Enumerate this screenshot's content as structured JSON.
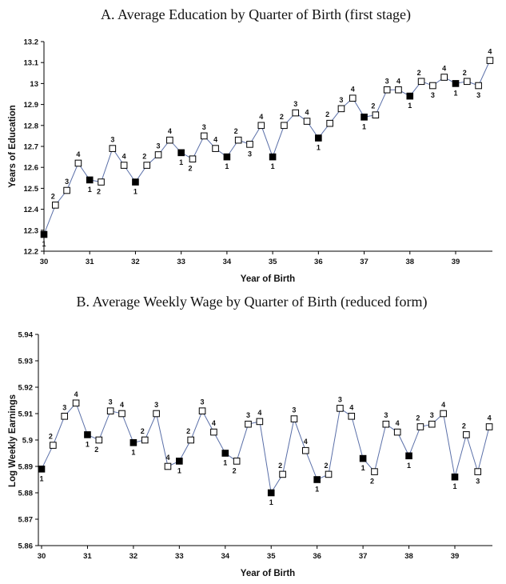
{
  "chart_data": [
    {
      "type": "line",
      "title": "A. Average Education by Quarter of Birth (first stage)",
      "xlabel": "Year of Birth",
      "ylabel": "Years of Education",
      "xlim": [
        30,
        39.8
      ],
      "ylim": [
        12.2,
        13.2
      ],
      "xticks": [
        30,
        31,
        32,
        33,
        34,
        35,
        36,
        37,
        38,
        39
      ],
      "xtick_labels": [
        "30",
        "31",
        "32",
        "33",
        "34",
        "35",
        "36",
        "37",
        "38",
        "39"
      ],
      "yticks": [
        12.2,
        12.3,
        12.4,
        12.5,
        12.6,
        12.7,
        12.8,
        12.9,
        13.0,
        13.1,
        13.2
      ],
      "ytick_labels": [
        "12.2",
        "12.3",
        "12.4",
        "12.5",
        "12.6",
        "12.7",
        "12.8",
        "12.9",
        "13",
        "13.1",
        "13.2"
      ],
      "grid": false,
      "legend": "none",
      "marker_note": "filled square = quarter 1, open square = quarters 2-4",
      "points": [
        {
          "x": 30.0,
          "y": 12.28,
          "q": "1"
        },
        {
          "x": 30.25,
          "y": 12.42,
          "q": "2"
        },
        {
          "x": 30.5,
          "y": 12.49,
          "q": "3"
        },
        {
          "x": 30.75,
          "y": 12.62,
          "q": "4"
        },
        {
          "x": 31.0,
          "y": 12.54,
          "q": "1"
        },
        {
          "x": 31.25,
          "y": 12.53,
          "q": "2"
        },
        {
          "x": 31.5,
          "y": 12.69,
          "q": "3"
        },
        {
          "x": 31.75,
          "y": 12.61,
          "q": "4"
        },
        {
          "x": 32.0,
          "y": 12.53,
          "q": "1"
        },
        {
          "x": 32.25,
          "y": 12.61,
          "q": "2"
        },
        {
          "x": 32.5,
          "y": 12.66,
          "q": "3"
        },
        {
          "x": 32.75,
          "y": 12.73,
          "q": "4"
        },
        {
          "x": 33.0,
          "y": 12.67,
          "q": "1"
        },
        {
          "x": 33.25,
          "y": 12.64,
          "q": "2"
        },
        {
          "x": 33.5,
          "y": 12.75,
          "q": "3"
        },
        {
          "x": 33.75,
          "y": 12.69,
          "q": "4"
        },
        {
          "x": 34.0,
          "y": 12.65,
          "q": "1"
        },
        {
          "x": 34.25,
          "y": 12.73,
          "q": "2"
        },
        {
          "x": 34.5,
          "y": 12.71,
          "q": "3"
        },
        {
          "x": 34.75,
          "y": 12.8,
          "q": "4"
        },
        {
          "x": 35.0,
          "y": 12.65,
          "q": "1"
        },
        {
          "x": 35.25,
          "y": 12.8,
          "q": "2"
        },
        {
          "x": 35.5,
          "y": 12.86,
          "q": "3"
        },
        {
          "x": 35.75,
          "y": 12.82,
          "q": "4"
        },
        {
          "x": 36.0,
          "y": 12.74,
          "q": "1"
        },
        {
          "x": 36.25,
          "y": 12.81,
          "q": "2"
        },
        {
          "x": 36.5,
          "y": 12.88,
          "q": "3"
        },
        {
          "x": 36.75,
          "y": 12.93,
          "q": "4"
        },
        {
          "x": 37.0,
          "y": 12.84,
          "q": "1"
        },
        {
          "x": 37.25,
          "y": 12.85,
          "q": "2"
        },
        {
          "x": 37.5,
          "y": 12.97,
          "q": "3"
        },
        {
          "x": 37.75,
          "y": 12.97,
          "q": "4"
        },
        {
          "x": 38.0,
          "y": 12.94,
          "q": "1"
        },
        {
          "x": 38.25,
          "y": 13.01,
          "q": "2"
        },
        {
          "x": 38.5,
          "y": 12.99,
          "q": "3"
        },
        {
          "x": 38.75,
          "y": 13.03,
          "q": "4"
        },
        {
          "x": 39.0,
          "y": 13.0,
          "q": "1"
        },
        {
          "x": 39.25,
          "y": 13.01,
          "q": "2"
        },
        {
          "x": 39.5,
          "y": 12.99,
          "q": "3"
        },
        {
          "x": 39.75,
          "y": 13.11,
          "q": "4"
        }
      ]
    },
    {
      "type": "line",
      "title": "B. Average Weekly Wage by Quarter of Birth (reduced form)",
      "xlabel": "Year of Birth",
      "ylabel": "Log Weekly Earnings",
      "xlim": [
        30,
        39.8
      ],
      "ylim": [
        5.86,
        5.94
      ],
      "xticks": [
        30,
        31,
        32,
        33,
        34,
        35,
        36,
        37,
        38,
        39
      ],
      "xtick_labels": [
        "30",
        "31",
        "32",
        "33",
        "34",
        "35",
        "36",
        "37",
        "38",
        "39"
      ],
      "yticks": [
        5.86,
        5.87,
        5.88,
        5.89,
        5.9,
        5.91,
        5.92,
        5.93,
        5.94
      ],
      "ytick_labels": [
        "5.86",
        "5.87",
        "5.88",
        "5.89",
        "5.9",
        "5.91",
        "5.92",
        "5.93",
        "5.94"
      ],
      "grid": false,
      "legend": "none",
      "marker_note": "filled square = quarter 1, open square = quarters 2-4",
      "points": [
        {
          "x": 30.0,
          "y": 5.889,
          "q": "1"
        },
        {
          "x": 30.25,
          "y": 5.898,
          "q": "2"
        },
        {
          "x": 30.5,
          "y": 5.909,
          "q": "3"
        },
        {
          "x": 30.75,
          "y": 5.914,
          "q": "4"
        },
        {
          "x": 31.0,
          "y": 5.902,
          "q": "1"
        },
        {
          "x": 31.25,
          "y": 5.9,
          "q": "2"
        },
        {
          "x": 31.5,
          "y": 5.911,
          "q": "3"
        },
        {
          "x": 31.75,
          "y": 5.91,
          "q": "4"
        },
        {
          "x": 32.0,
          "y": 5.899,
          "q": "1"
        },
        {
          "x": 32.25,
          "y": 5.9,
          "q": "2"
        },
        {
          "x": 32.5,
          "y": 5.91,
          "q": "3"
        },
        {
          "x": 32.75,
          "y": 5.89,
          "q": "4"
        },
        {
          "x": 33.0,
          "y": 5.892,
          "q": "1"
        },
        {
          "x": 33.25,
          "y": 5.9,
          "q": "2"
        },
        {
          "x": 33.5,
          "y": 5.911,
          "q": "3"
        },
        {
          "x": 33.75,
          "y": 5.903,
          "q": "4"
        },
        {
          "x": 34.0,
          "y": 5.895,
          "q": "1"
        },
        {
          "x": 34.25,
          "y": 5.892,
          "q": "2"
        },
        {
          "x": 34.5,
          "y": 5.906,
          "q": "3"
        },
        {
          "x": 34.75,
          "y": 5.907,
          "q": "4"
        },
        {
          "x": 35.0,
          "y": 5.88,
          "q": "1"
        },
        {
          "x": 35.25,
          "y": 5.887,
          "q": "2"
        },
        {
          "x": 35.5,
          "y": 5.908,
          "q": "3"
        },
        {
          "x": 35.75,
          "y": 5.896,
          "q": "4"
        },
        {
          "x": 36.0,
          "y": 5.885,
          "q": "1"
        },
        {
          "x": 36.25,
          "y": 5.887,
          "q": "2"
        },
        {
          "x": 36.5,
          "y": 5.912,
          "q": "3"
        },
        {
          "x": 36.75,
          "y": 5.909,
          "q": "4"
        },
        {
          "x": 37.0,
          "y": 5.893,
          "q": "1"
        },
        {
          "x": 37.25,
          "y": 5.888,
          "q": "2"
        },
        {
          "x": 37.5,
          "y": 5.906,
          "q": "3"
        },
        {
          "x": 37.75,
          "y": 5.903,
          "q": "4"
        },
        {
          "x": 38.0,
          "y": 5.894,
          "q": "1"
        },
        {
          "x": 38.25,
          "y": 5.905,
          "q": "2"
        },
        {
          "x": 38.5,
          "y": 5.906,
          "q": "3"
        },
        {
          "x": 38.75,
          "y": 5.91,
          "q": "4"
        },
        {
          "x": 39.0,
          "y": 5.886,
          "q": "1"
        },
        {
          "x": 39.25,
          "y": 5.902,
          "q": "2"
        },
        {
          "x": 39.5,
          "y": 5.888,
          "q": "3"
        },
        {
          "x": 39.75,
          "y": 5.905,
          "q": "4"
        }
      ]
    }
  ]
}
